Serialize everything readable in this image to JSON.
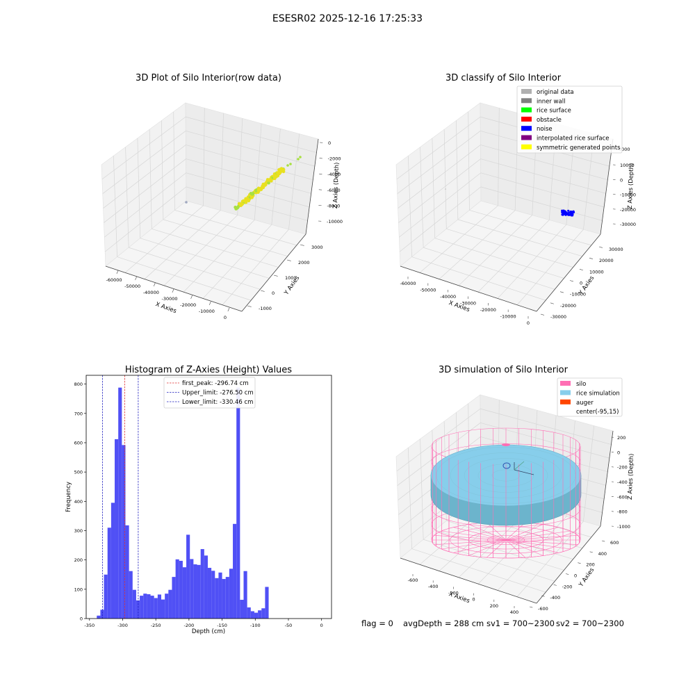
{
  "figure_title": "ESESR02 2025-12-16 17:25:33",
  "status_line": {
    "flag": "flag = 0",
    "avg_depth": "avgDepth = 288 cm",
    "sv1": "sv1 = 700~2300",
    "sv2": "sv2 = 700~2300"
  },
  "colors": {
    "histogram_bar": "#5050f5",
    "first_peak_line": "#e03030",
    "limit_line": "#2020c0",
    "raw_point_yellow": "#e8e020",
    "raw_point_green": "#a8e040",
    "noise": "#0000ff",
    "silo": "#ff6eb4",
    "rice": "#87ceeb",
    "auger": "#ff4500",
    "original": "#b0b0b0",
    "inner_wall": "#808080",
    "rice_surface": "#00ff00",
    "obstacle": "#ff0000",
    "interpolated": "#800080",
    "symmetric": "#ffff00"
  },
  "chart_data": [
    {
      "type": "scatter",
      "title": "3D Plot of Silo Interior(row data)",
      "xlabel": "X Axies",
      "ylabel": "Y Axies",
      "zlabel": "Z Axies (Depth)",
      "x_ticks": [
        "-60000",
        "-50000",
        "-40000",
        "-30000",
        "-20000",
        "-10000",
        "0"
      ],
      "y_ticks": [
        "-1000",
        "0",
        "1000",
        "2000",
        "3000"
      ],
      "z_ticks": [
        "0",
        "-2000",
        "-4000",
        "-6000",
        "-8000",
        "-10000"
      ],
      "grid": true
    },
    {
      "type": "scatter",
      "title": "3D classify of Silo Interior",
      "xlabel": "X Axies",
      "ylabel": "Y Axies",
      "zlabel": "Z Axies (Depth)",
      "x_ticks": [
        "-60000",
        "-50000",
        "-40000",
        "-30000",
        "-20000",
        "-10000",
        "0"
      ],
      "y_ticks": [
        "-30000",
        "-20000",
        "-10000",
        "0",
        "10000",
        "20000",
        "30000"
      ],
      "z_ticks": [
        "10000",
        "0",
        "-10000",
        "-20000",
        "-30000"
      ],
      "z_ticks_top": "0000",
      "legend": [
        "original data",
        "inner wall",
        "rice surface",
        "obstacle",
        "noise",
        "interpolated rice surface",
        "symmetric generated points"
      ],
      "legend_position": "top-right",
      "grid": true
    },
    {
      "type": "bar",
      "title": "Histogram of Z-Axies (Height) Values",
      "xlabel": "Depth (cm)",
      "ylabel": "Frequency",
      "xlim": [
        -350,
        0
      ],
      "ylim": [
        0,
        830
      ],
      "x_ticks": [
        -350,
        -300,
        -250,
        -200,
        -150,
        -100,
        -50,
        0
      ],
      "y_ticks": [
        0,
        100,
        200,
        300,
        400,
        500,
        600,
        700,
        800
      ],
      "bin_start": -339,
      "bin_width": 5.4,
      "values": [
        10,
        30,
        150,
        310,
        395,
        612,
        788,
        592,
        318,
        162,
        98,
        62,
        78,
        85,
        83,
        78,
        70,
        82,
        65,
        85,
        98,
        142,
        202,
        197,
        175,
        286,
        203,
        185,
        183,
        237,
        215,
        173,
        163,
        138,
        157,
        135,
        142,
        170,
        323,
        788,
        64,
        162,
        38,
        25,
        20,
        28,
        35,
        108
      ],
      "vlines": [
        {
          "label": "first_peak: -296.74 cm",
          "x": -296.74,
          "color": "#e03030"
        },
        {
          "label": "Upper_limit: -276.50 cm",
          "x": -276.5,
          "color": "#2020c0"
        },
        {
          "label": "Lower_limit: -330.46 cm",
          "x": -330.46,
          "color": "#2020c0"
        }
      ],
      "legend_position": "top-center",
      "grid": false
    },
    {
      "type": "scatter",
      "title": "3D simulation of Silo Interior",
      "xlabel": "X Axies",
      "ylabel": "Y Axies",
      "zlabel": "Z Axies (Depth)",
      "x_ticks": [
        "-600",
        "-400",
        "-200",
        "0",
        "200",
        "400"
      ],
      "y_ticks": [
        "-600",
        "-400",
        "-200",
        "0",
        "200",
        "400",
        "600"
      ],
      "z_ticks": [
        "200",
        "0",
        "-200",
        "-400",
        "-600",
        "-800",
        "-1000"
      ],
      "legend": [
        "silo",
        "rice simulation",
        "auger",
        "center(-95,15)"
      ],
      "legend_position": "top-right",
      "grid": true
    }
  ]
}
